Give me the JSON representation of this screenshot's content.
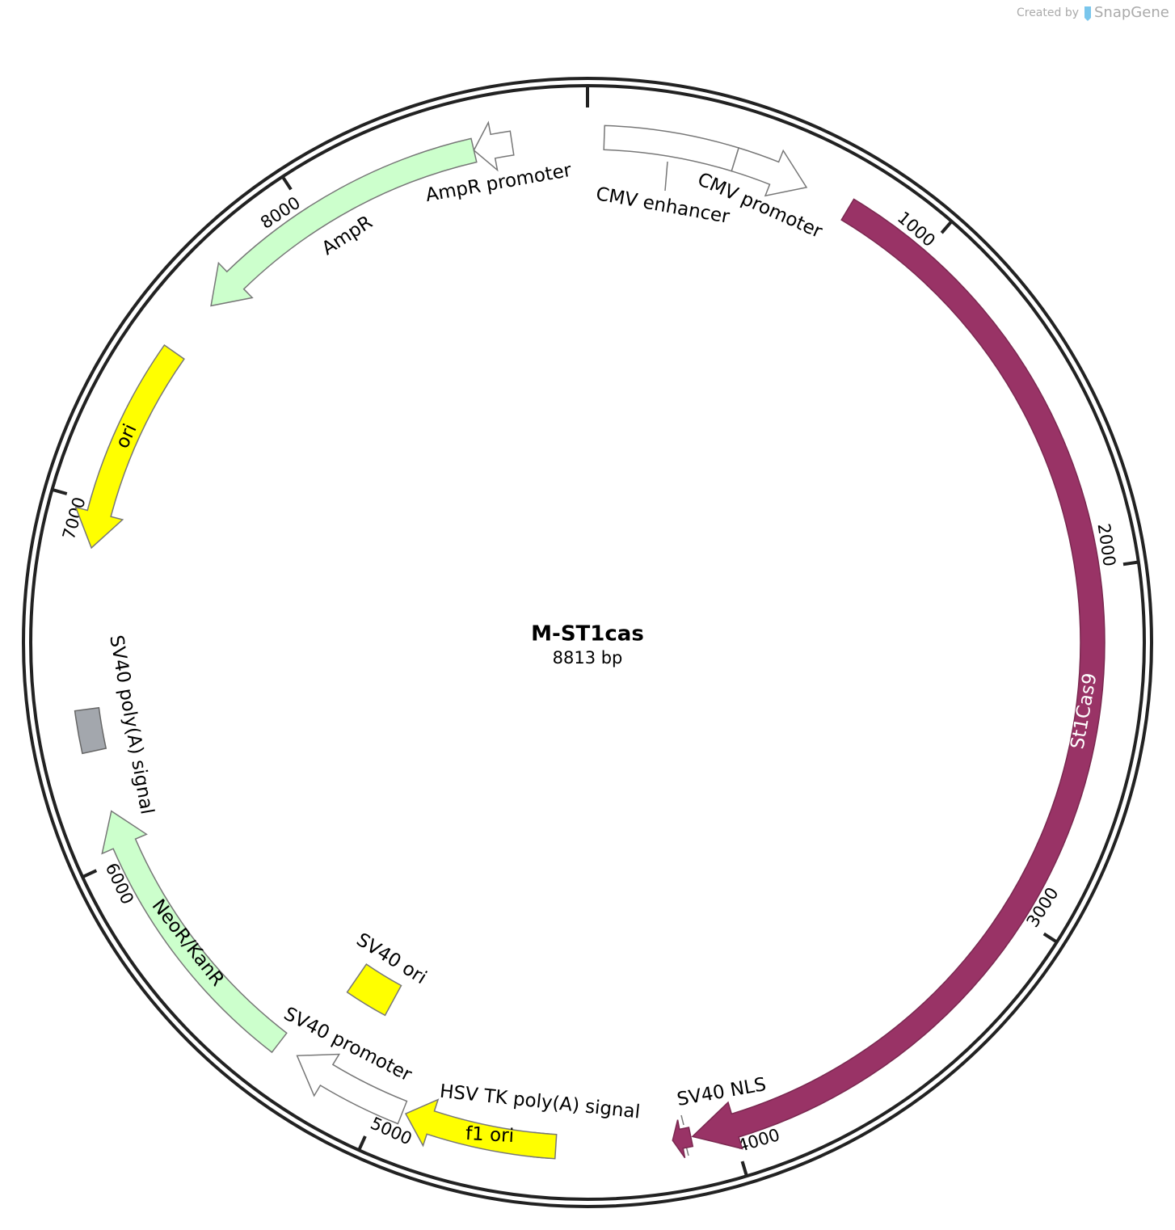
{
  "header": {
    "watermark_prefix": "Created by",
    "watermark_brand": "SnapGene"
  },
  "plasmid": {
    "name": "M-ST1cas",
    "length": "8813 bp"
  },
  "ticks": [
    1000,
    2000,
    3000,
    4000,
    5000,
    6000,
    7000,
    8000
  ],
  "features": [
    {
      "label": "CMV enhancer"
    },
    {
      "label": "CMV promoter"
    },
    {
      "label": "St1Cas9"
    },
    {
      "label": "SV40 NLS"
    },
    {
      "label": "HSV TK poly(A) signal"
    },
    {
      "label": "f1 ori"
    },
    {
      "label": "SV40 promoter"
    },
    {
      "label": "SV40 ori"
    },
    {
      "label": "NeoR/KanR"
    },
    {
      "label": "SV40 poly(A) signal"
    },
    {
      "label": "ori"
    },
    {
      "label": "AmpR"
    },
    {
      "label": "AmpR promoter"
    }
  ]
}
